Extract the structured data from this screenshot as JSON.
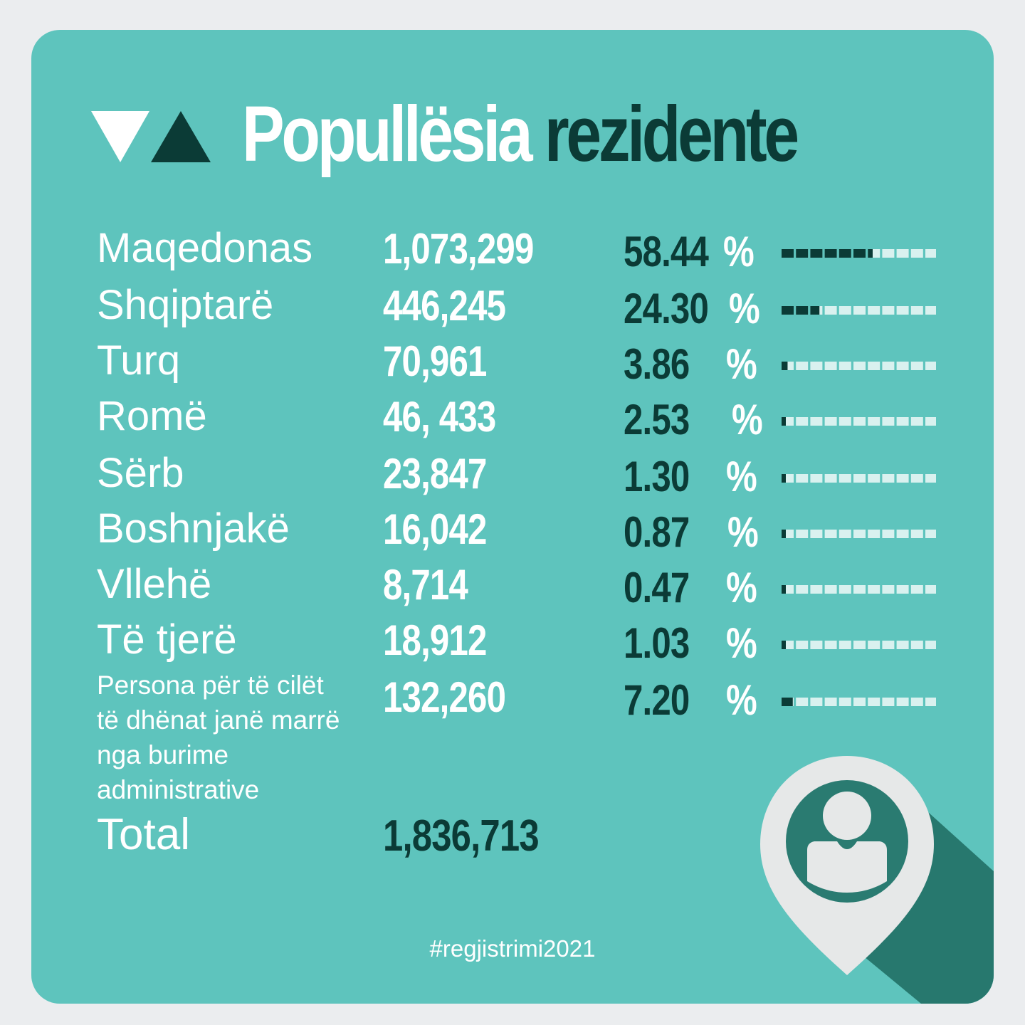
{
  "title": {
    "part1": "Popullësia",
    "part2": "rezidente"
  },
  "colors": {
    "background": "#5ec4bd",
    "dark": "#0b3b36",
    "page": "#ebedef",
    "bar_light": "#d9f1ef"
  },
  "rows": [
    {
      "label": "Maqedonas",
      "count": "1,073,299",
      "pct": "58.44",
      "sign": "%"
    },
    {
      "label": "Shqiptarë",
      "count": "446,245",
      "pct": "24.30",
      "sign": "%"
    },
    {
      "label": "Turq",
      "count": "70,961",
      "pct": "3.86",
      "sign": "%"
    },
    {
      "label": "Romë",
      "count": "46, 433",
      "pct": "2.53",
      "sign": "%"
    },
    {
      "label": "Sërb",
      "count": "23,847",
      "pct": "1.30",
      "sign": "%"
    },
    {
      "label": "Boshnjakë",
      "count": "16,042",
      "pct": "0.87",
      "sign": "%"
    },
    {
      "label": "Vllehë",
      "count": "8,714",
      "pct": "0.47",
      "sign": "%"
    },
    {
      "label": "Të tjerë",
      "count": "18,912",
      "pct": "1.03",
      "sign": "%"
    },
    {
      "label_lines": [
        "Persona për të cilët",
        "të dhënat janë marrë",
        "nga burime",
        "administrative"
      ],
      "count": "132,260",
      "pct": "7.20",
      "sign": "%"
    }
  ],
  "total": {
    "label": "Total",
    "value": "1,836,713"
  },
  "hashtag": "#regjistrimi2021",
  "chart_data": {
    "type": "bar",
    "title": "Popullësia rezidente",
    "categories": [
      "Maqedonas",
      "Shqiptarë",
      "Turq",
      "Romë",
      "Sërb",
      "Boshnjakë",
      "Vllehë",
      "Të tjerë",
      "Persona për të cilët të dhënat janë marrë nga burime administrative"
    ],
    "series": [
      {
        "values": [
          1073299,
          446245,
          70961,
          46433,
          23847,
          16042,
          8714,
          18912,
          132260
        ]
      },
      {
        "values": [
          58.44,
          24.3,
          3.86,
          2.53,
          1.3,
          0.87,
          0.47,
          1.03,
          7.2
        ]
      }
    ],
    "total": 1836713,
    "xlabel": "",
    "ylabel": "",
    "ylim": [
      0,
      100
    ],
    "grid": false,
    "legend": "none",
    "icons": [
      "triangle-down-icon",
      "triangle-up-icon",
      "location-pin-person-icon"
    ]
  }
}
